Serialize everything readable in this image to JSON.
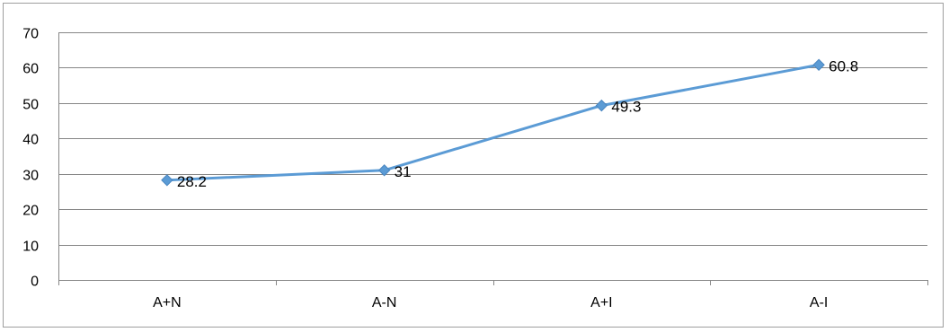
{
  "chart_data": {
    "type": "line",
    "title": "",
    "xlabel": "",
    "ylabel": "",
    "categories": [
      "A+N",
      "A-N",
      "A+I",
      "A-I"
    ],
    "series": [
      {
        "values": [
          28.2,
          31,
          49.3,
          60.8
        ],
        "color": "#5b9bd5",
        "marker": "diamond"
      }
    ],
    "data_labels": [
      "28.2",
      "31",
      "49.3",
      "60.8"
    ],
    "ylim": [
      0,
      70
    ],
    "yticks": [
      0,
      10,
      20,
      30,
      40,
      50,
      60,
      70
    ],
    "ytick_labels": [
      "0",
      "10",
      "20",
      "30",
      "40",
      "50",
      "60",
      "70"
    ],
    "grid": true,
    "gridline_color": "#868686",
    "legend": "none"
  }
}
